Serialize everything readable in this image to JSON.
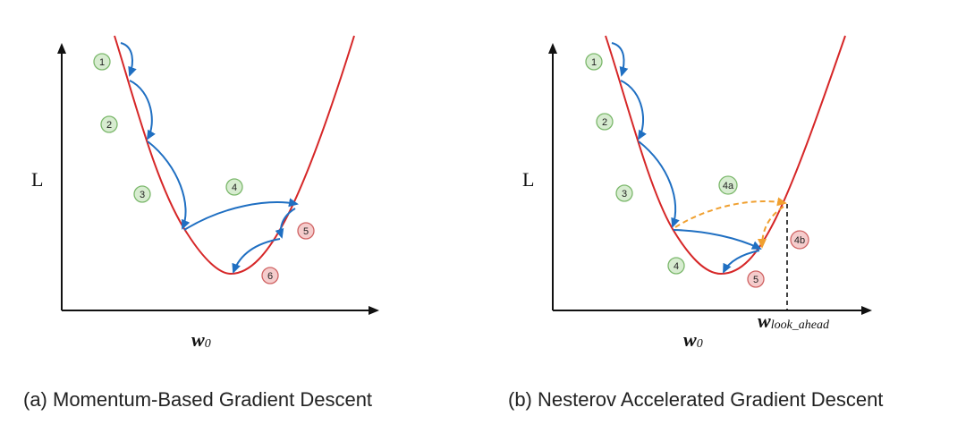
{
  "panel_a": {
    "y_label": "L",
    "x_label_main": "w",
    "x_label_sub": "0",
    "caption": "(a) Momentum-Based Gradient Descent",
    "steps": [
      "1",
      "2",
      "3",
      "4",
      "5",
      "6"
    ]
  },
  "panel_b": {
    "y_label": "L",
    "x_label_main": "w",
    "x_label_sub": "0",
    "look_ahead_main": "w",
    "look_ahead_sub": "look_ahead",
    "caption": "(b) Nesterov Accelerated Gradient Descent",
    "steps": [
      "1",
      "2",
      "3",
      "4a",
      "4b",
      "4",
      "5"
    ]
  },
  "colors": {
    "curve": "#d62728",
    "arrow": "#1f6fc2",
    "lookahead_arrow": "#f0a030",
    "green_badge_fill": "#d7ecd0",
    "green_badge_stroke": "#7cb86c",
    "red_badge_fill": "#f5cccc",
    "red_badge_stroke": "#d06464"
  }
}
